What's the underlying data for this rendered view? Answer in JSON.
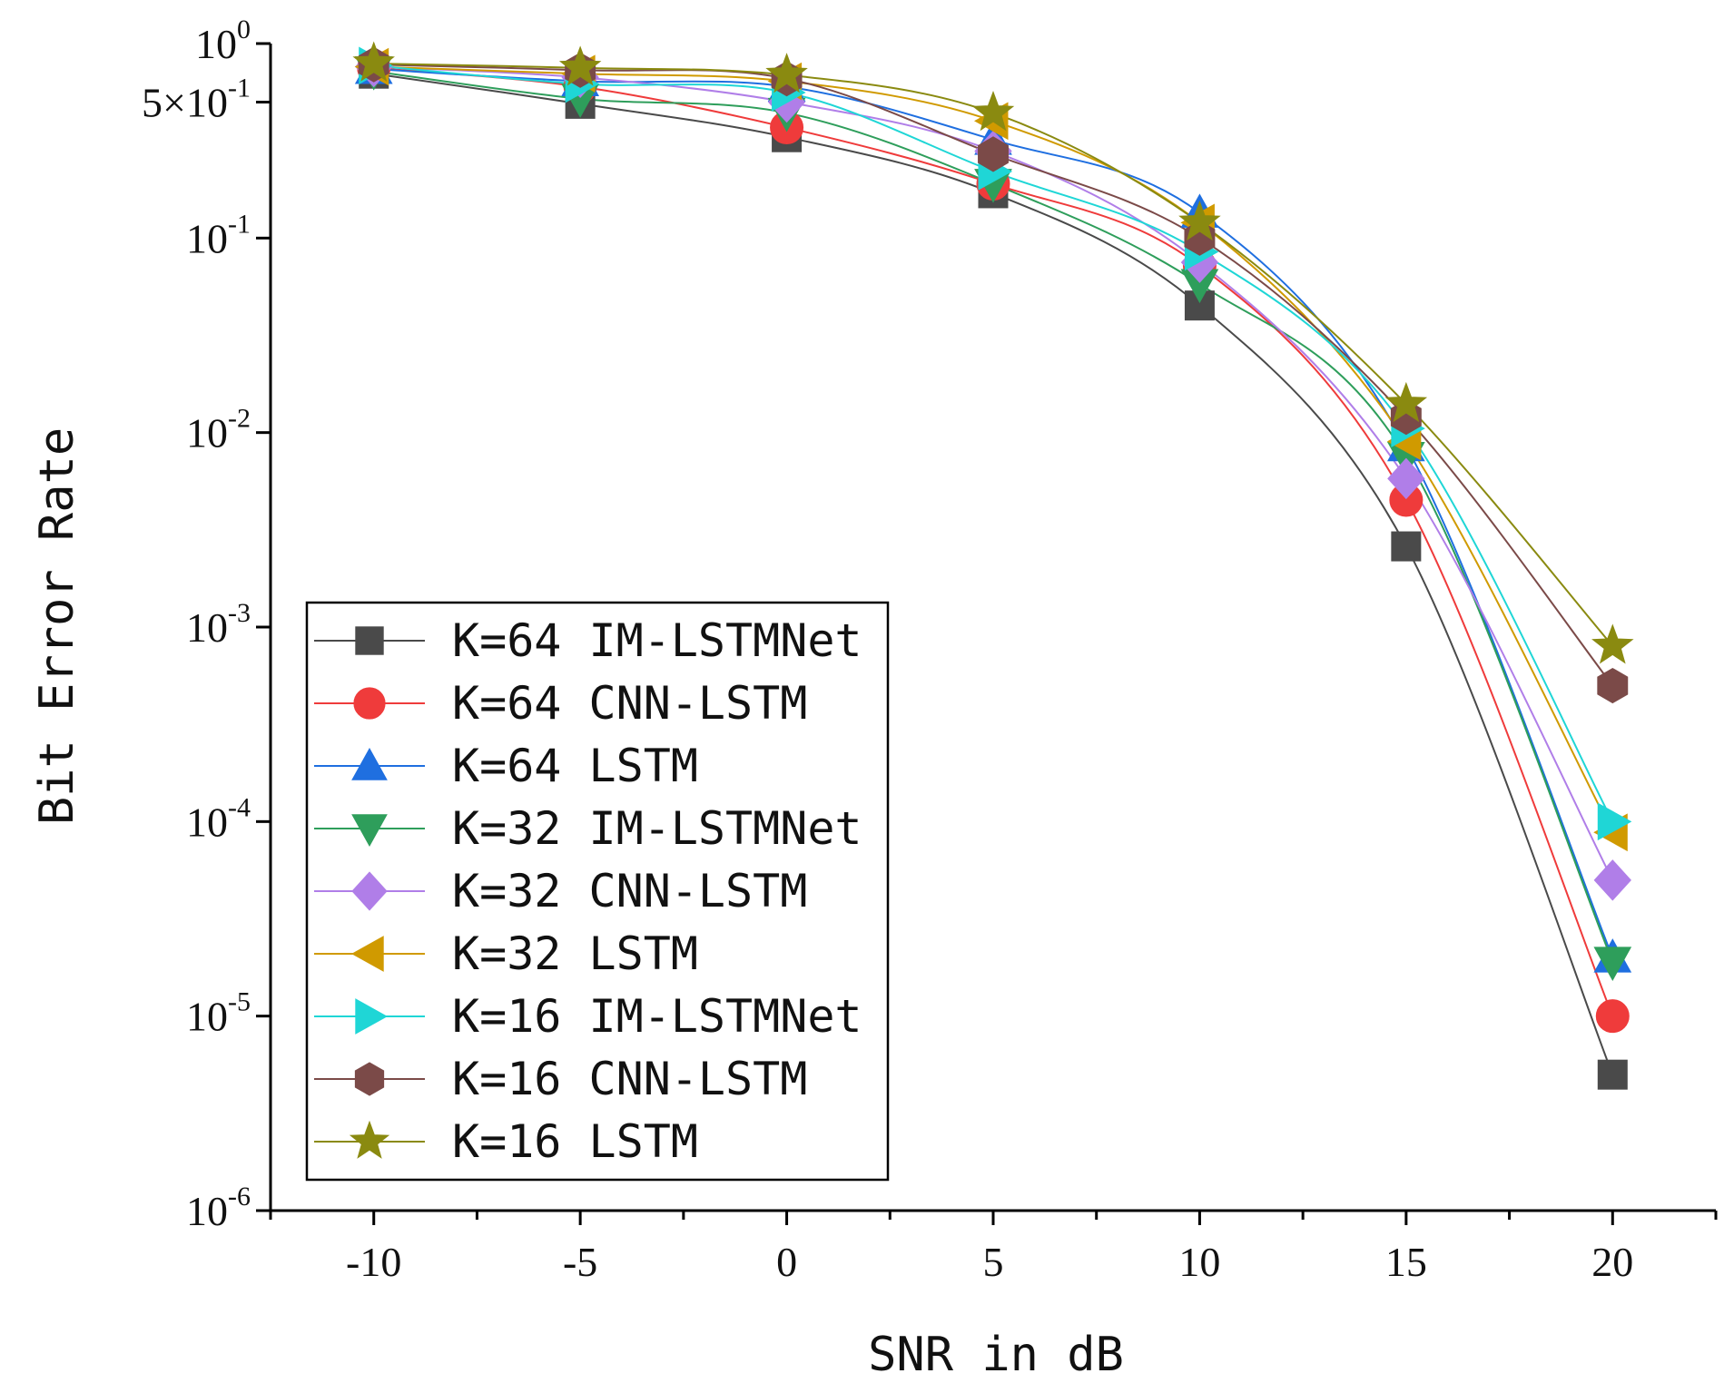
{
  "chart_data": {
    "type": "line",
    "title": "",
    "xlabel": "SNR in dB",
    "ylabel": "Bit Error Rate",
    "xlim": [
      -12.5,
      22.5
    ],
    "ylim": [
      1e-06,
      1
    ],
    "yscale": "log",
    "grid": false,
    "legend_position": "bottom-left",
    "x": [
      -10,
      -5,
      0,
      5,
      10,
      15,
      20
    ],
    "x_tick_labels": [
      "-10",
      "-5",
      "0",
      "5",
      "10",
      "15",
      "20"
    ],
    "y_ticks": [
      {
        "value": 1,
        "mantissa": "",
        "exp": "0"
      },
      {
        "value": 0.5,
        "mantissa": "5×",
        "exp": "-1"
      },
      {
        "value": 0.1,
        "mantissa": "",
        "exp": "-1"
      },
      {
        "value": 0.01,
        "mantissa": "",
        "exp": "-2"
      },
      {
        "value": 0.001,
        "mantissa": "",
        "exp": "-3"
      },
      {
        "value": 0.0001,
        "mantissa": "",
        "exp": "-4"
      },
      {
        "value": 1e-05,
        "mantissa": "",
        "exp": "-5"
      },
      {
        "value": 1e-06,
        "mantissa": "",
        "exp": "-6"
      }
    ],
    "series": [
      {
        "name": "K=64 IM-LSTMNet",
        "color": "#4a4a4a",
        "marker": "square",
        "values": [
          0.7,
          0.49,
          0.33,
          0.17,
          0.045,
          0.0026,
          5e-06
        ]
      },
      {
        "name": "K=64 CNN-LSTM",
        "color": "#ef3b3b",
        "marker": "circle",
        "values": [
          0.75,
          0.6,
          0.37,
          0.19,
          0.072,
          0.0045,
          1e-05
        ]
      },
      {
        "name": "K=64 LSTM",
        "color": "#1f6fe0",
        "marker": "triangle-up",
        "values": [
          0.74,
          0.64,
          0.6,
          0.32,
          0.135,
          0.0085,
          2e-05
        ]
      },
      {
        "name": "K=32 IM-LSTMNet",
        "color": "#2e9e5b",
        "marker": "triangle-down",
        "values": [
          0.72,
          0.52,
          0.44,
          0.19,
          0.058,
          0.0075,
          1.9e-05
        ]
      },
      {
        "name": "K=32 CNN-LSTM",
        "color": "#b07ee8",
        "marker": "diamond",
        "values": [
          0.76,
          0.67,
          0.5,
          0.28,
          0.075,
          0.0058,
          5e-05
        ]
      },
      {
        "name": "K=32 LSTM",
        "color": "#d09a00",
        "marker": "triangle-left",
        "values": [
          0.76,
          0.7,
          0.64,
          0.4,
          0.12,
          0.009,
          8.8e-05
        ]
      },
      {
        "name": "K=16 IM-LSTMNet",
        "color": "#1fd6d6",
        "marker": "triangle-right",
        "values": [
          0.77,
          0.62,
          0.56,
          0.22,
          0.085,
          0.0105,
          0.0001
        ]
      },
      {
        "name": "K=16 CNN-LSTM",
        "color": "#7b4a48",
        "marker": "hexagon",
        "values": [
          0.78,
          0.73,
          0.66,
          0.27,
          0.1,
          0.012,
          0.0005
        ]
      },
      {
        "name": "K=16 LSTM",
        "color": "#8a8a10",
        "marker": "star",
        "values": [
          0.79,
          0.75,
          0.69,
          0.44,
          0.12,
          0.014,
          0.0008
        ]
      }
    ]
  }
}
